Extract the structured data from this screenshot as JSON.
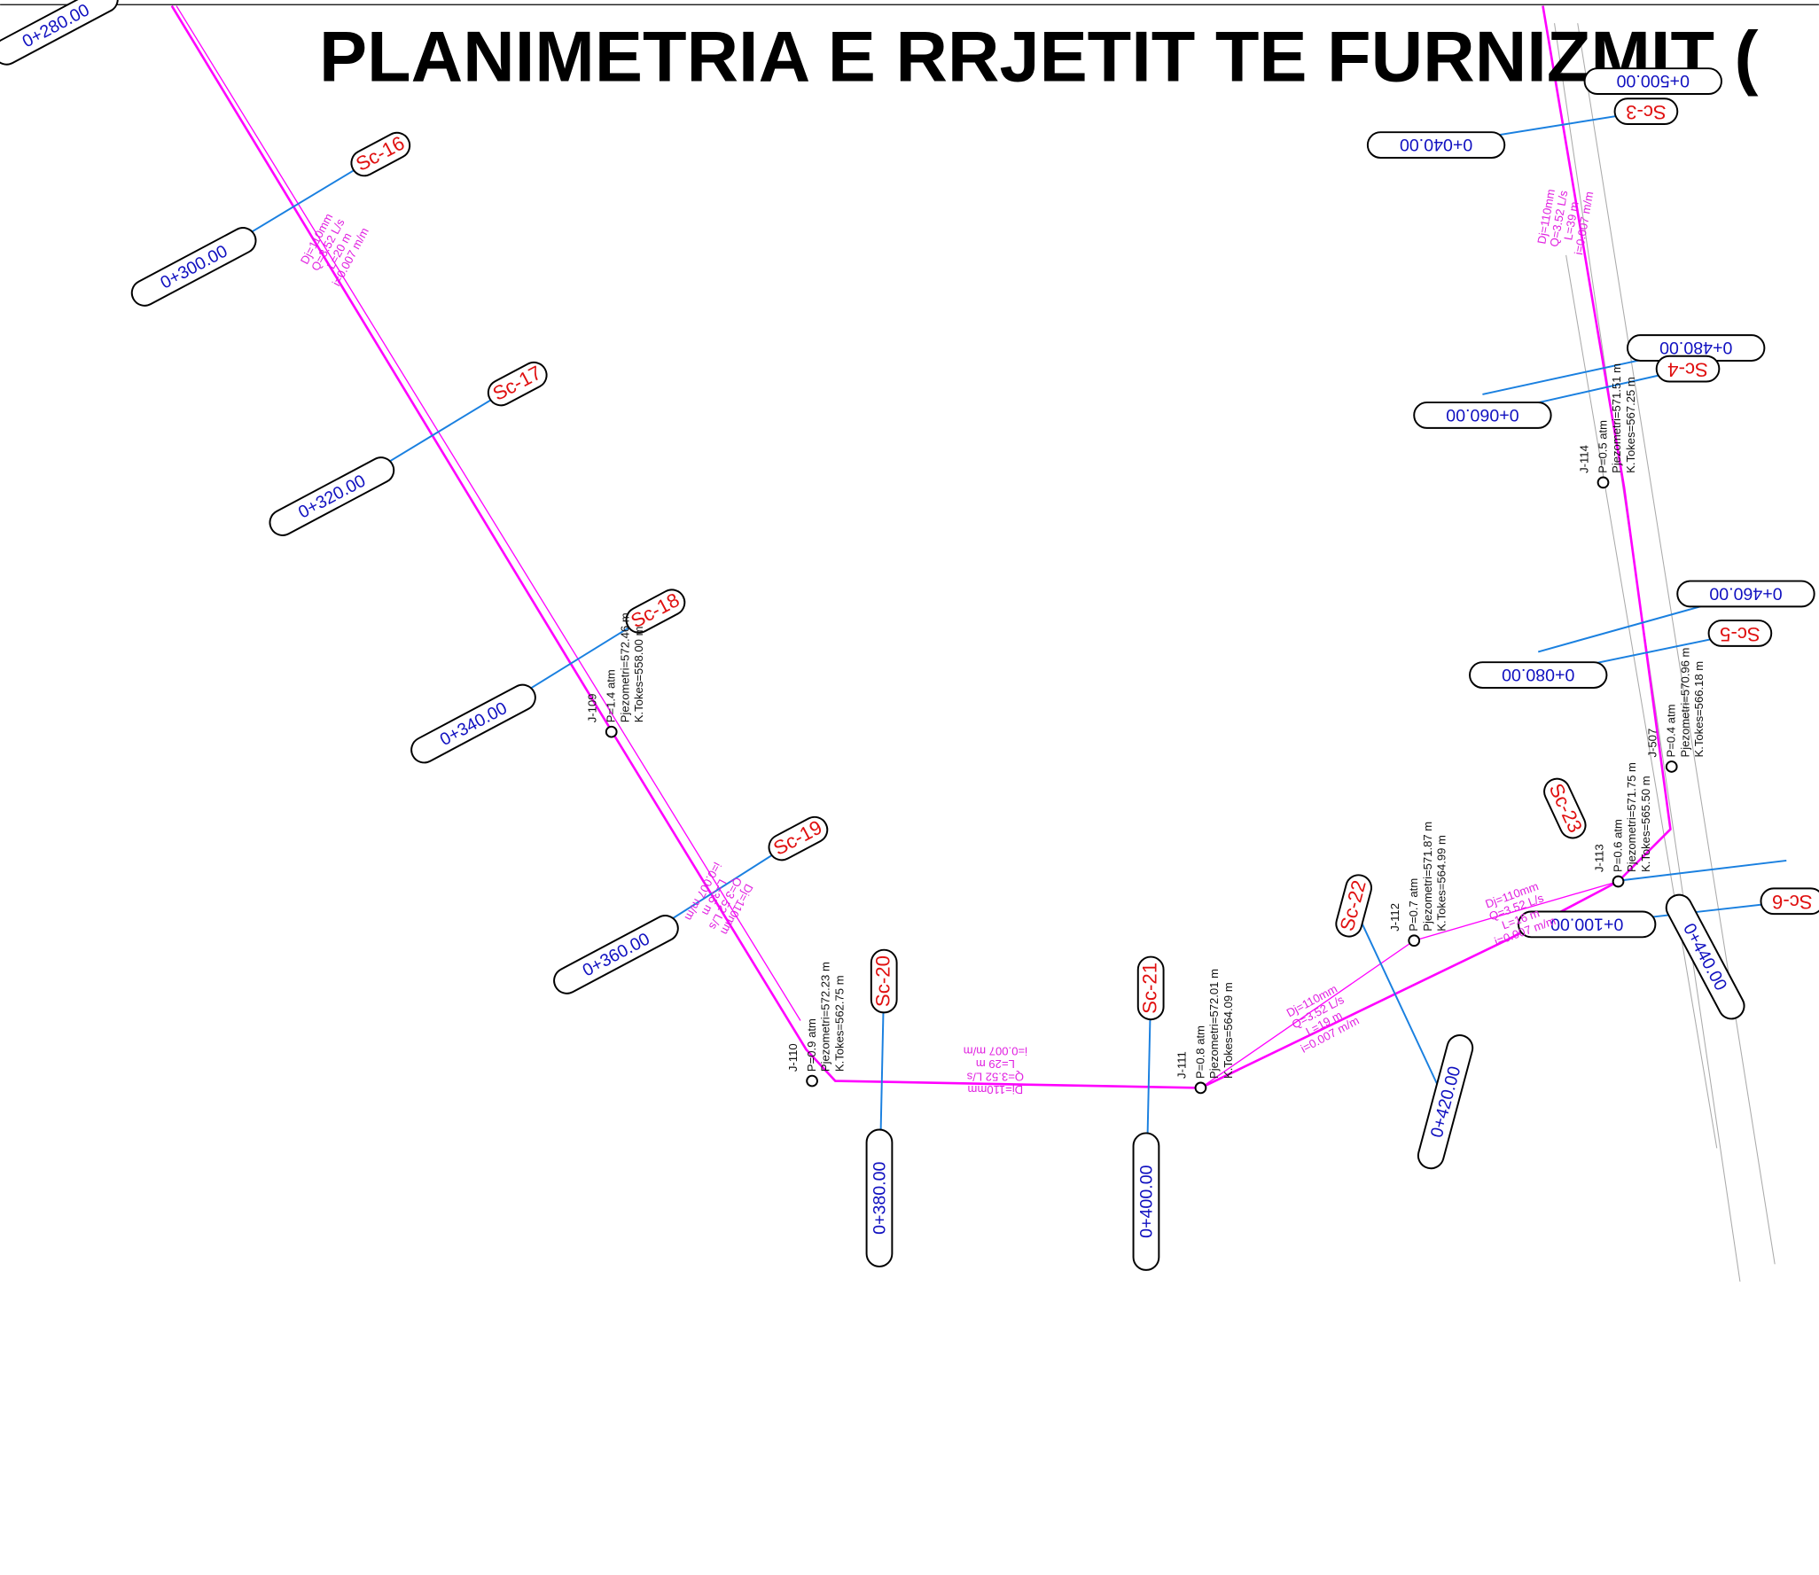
{
  "title": "PLANIMETRIA E RRJETIT TE FURNIZMIT (",
  "stations": [
    "0+280.00",
    "0+300.00",
    "0+320.00",
    "0+340.00",
    "0+360.00",
    "0+380.00",
    "0+400.00",
    "0+420.00",
    "0+040.00",
    "0+060.00",
    "0+080.00",
    "0+100.00",
    "0+440.00",
    "0+460.00",
    "0+480.00",
    "0+500.00"
  ],
  "sections": [
    "Sc-16",
    "Sc-17",
    "Sc-18",
    "Sc-19",
    "Sc-20",
    "Sc-21",
    "Sc-22",
    "Sc-23",
    "Sc-3",
    "Sc-4",
    "Sc-5",
    "Sc-6"
  ],
  "junctions": [
    {
      "id": "J-109",
      "pressure": "P=1.4 atm",
      "piezometer": "Pjezometri=572.46 m",
      "elevation": "K.Tokes=558.00 m"
    },
    {
      "id": "J-110",
      "pressure": "P=0.9 atm",
      "piezometer": "Pjezometri=572.23 m",
      "elevation": "K.Tokes=562.75 m"
    },
    {
      "id": "J-111",
      "pressure": "P=0.8 atm",
      "piezometer": "Pjezometri=572.01 m",
      "elevation": "K.Tokes=564.09 m"
    },
    {
      "id": "J-112",
      "pressure": "P=0.7 atm",
      "piezometer": "Pjezometri=571.87 m",
      "elevation": "K.Tokes=564.99 m"
    },
    {
      "id": "J-113",
      "pressure": "P=0.6 atm",
      "piezometer": "Pjezometri=571.75 m",
      "elevation": "K.Tokes=565.50 m"
    },
    {
      "id": "J-114",
      "pressure": "P=0.5 atm",
      "piezometer": "Pjezometri=571.51 m",
      "elevation": "K.Tokes=567.25 m"
    },
    {
      "id": "J-507",
      "pressure": "P=0.4 atm",
      "piezometer": "Pjezometri=570.96 m",
      "elevation": "K.Tokes=566.18 m"
    }
  ],
  "pipes": [
    {
      "diameter": "Dj=110mm",
      "flow": "Q=3.52 L/s",
      "length": "L=20 m",
      "slope": "i=0.007 m/m"
    },
    {
      "diameter": "Dj=110mm",
      "flow": "Q=3.52 L/s",
      "length": "L=35 m",
      "slope": "i=0.007 m/m"
    },
    {
      "diameter": "Dj=110mm",
      "flow": "Q=3.52 L/s",
      "length": "L=29 m",
      "slope": "i=0.007 m/m"
    },
    {
      "diameter": "Dj=110mm",
      "flow": "Q=3.52 L/s",
      "length": "L=19 m",
      "slope": "i=0.007 m/m"
    },
    {
      "diameter": "Dj=110mm",
      "flow": "Q=3.52 L/s",
      "length": "L=16 m",
      "slope": "i=0.007 m/m"
    },
    {
      "diameter": "Dj=110mm",
      "flow": "Q=3.52 L/s",
      "length": "L=39 m",
      "slope": "i=0.007 m/m"
    }
  ]
}
